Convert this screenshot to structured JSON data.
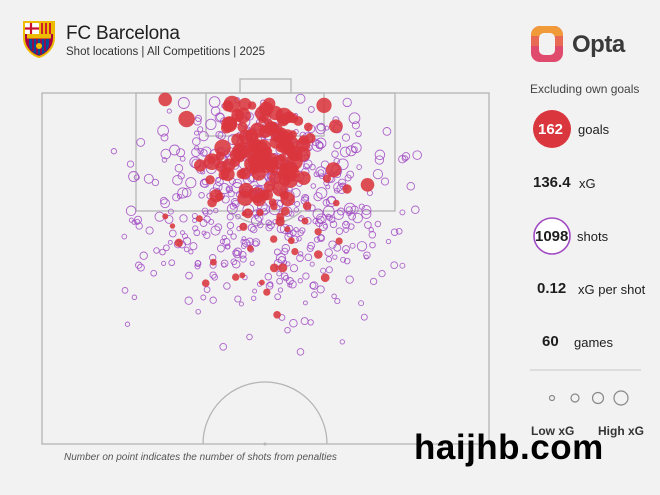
{
  "header": {
    "title": "FC Barcelona",
    "subtitle": "Shot locations | All Competitions | 2025"
  },
  "brand": {
    "name": "Opta"
  },
  "stats": {
    "note": "Excluding own goals",
    "goals_value": "162",
    "goals_label": "goals",
    "xg_value": "136.4",
    "xg_label": "xG",
    "shots_value": "1098",
    "shots_label": "shots",
    "xg_per_shot_value": "0.12",
    "xg_per_shot_label": "xG per shot",
    "games_value": "60",
    "games_label": "games"
  },
  "legend": {
    "low": "Low xG",
    "high": "High xG"
  },
  "footnote": "Number on point indicates the number of shots from penalties",
  "watermark": "haijhb.com",
  "colors": {
    "goal": "#d9363e",
    "shot": "#a24bc4",
    "background": "#f2f2f2",
    "line": "#b5b5b5"
  },
  "chart_data": {
    "type": "scatter",
    "title": "FC Barcelona",
    "subtitle": "Shot locations | All Competitions | 2025",
    "series": [
      {
        "name": "goals",
        "count": 162
      },
      {
        "name": "shots",
        "count": 1098
      }
    ],
    "totals": {
      "goals": 162,
      "xg": 136.4,
      "shots": 1098,
      "xg_per_shot": 0.12,
      "games": 60
    }
  }
}
